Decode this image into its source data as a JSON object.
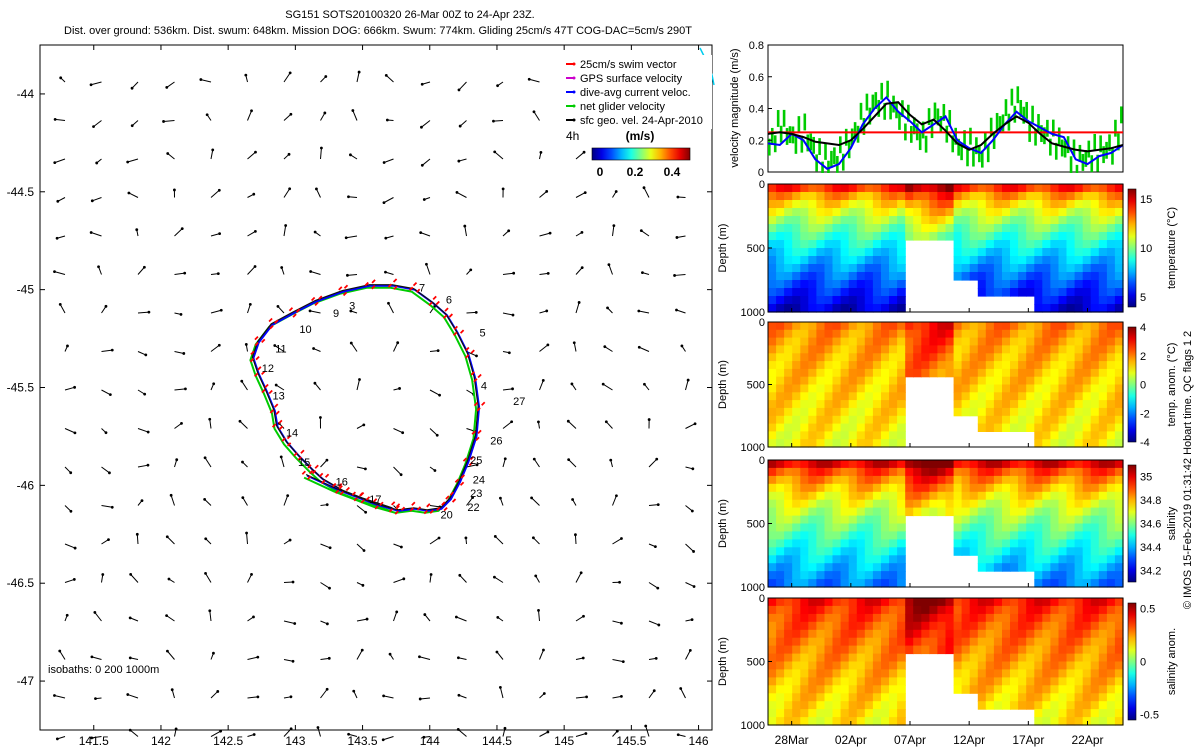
{
  "header": {
    "title": "SG151 SOTS20100320 26-Mar 00Z to 24-Apr 23Z.",
    "subtitle": "Dist. over ground: 536km. Dist. swum: 648km. Mission DOG: 666km. Swum: 774km. Gliding 25cm/s 47T COG-DAC=5cm/s 290T"
  },
  "credit": "© IMOS 15-Feb-2019 01:31:42 Hobart time. QC flags 1  2",
  "colors": {
    "swim": "#ff0000",
    "gps": "#cc00cc",
    "dac": "#0000ff",
    "net": "#00cc00",
    "sfc": "#000000",
    "track_cyan": "#00ccee"
  },
  "chart_data": [
    {
      "id": "map",
      "type": "scatter",
      "title": "",
      "xlabel": "",
      "ylabel": "",
      "xlim": [
        141.1,
        146.1
      ],
      "ylim": [
        -47.25,
        -43.75
      ],
      "x_ticks": [
        141.5,
        142,
        142.5,
        143,
        143.5,
        144,
        144.5,
        145,
        145.5,
        146
      ],
      "x_tick_labels": [
        "141.5",
        "142",
        "142.5",
        "143",
        "143.5",
        "144",
        "144.5",
        "145",
        "145.5",
        "146"
      ],
      "y_ticks": [
        -44,
        -44.5,
        -45,
        -45.5,
        -46,
        -46.5,
        -47
      ],
      "y_tick_labels": [
        "-44",
        "-44.5",
        "-45",
        "-45.5",
        "-46",
        "-46.5",
        "-47"
      ],
      "legend": {
        "items": [
          {
            "label": "25cm/s swim vector",
            "color": "#ff0000"
          },
          {
            "label": "GPS surface velocity",
            "color": "#cc00cc"
          },
          {
            "label": "dive-avg current veloc.",
            "color": "#0000ff"
          },
          {
            "label": "net glider velocity",
            "color": "#00cc00"
          },
          {
            "label": "sfc geo. vel. 24-Apr-2010",
            "color": "#000000"
          }
        ],
        "position": "top-right"
      },
      "colorbar": {
        "label": "(m/s)",
        "time_label": "4h",
        "ticks": [
          "0",
          "0.2",
          "0.4"
        ]
      },
      "isobaths_label": "isobaths: 0  200  1000m",
      "track": {
        "lon": [
          143.72,
          143.5,
          143.35,
          143.2,
          143.12,
          143.02,
          142.93,
          142.86,
          142.84,
          142.78,
          142.72,
          142.68,
          142.72,
          142.82,
          142.98,
          143.15,
          143.35,
          143.55,
          143.72,
          143.88,
          144.02,
          144.12,
          144.2,
          144.28,
          144.33,
          144.36,
          144.34,
          144.28,
          144.22,
          144.15,
          144.08,
          143.98,
          143.88,
          143.76,
          143.6,
          143.45,
          143.3,
          143.08
        ],
        "lat": [
          -46.12,
          -46.07,
          -46.03,
          -45.97,
          -45.92,
          -45.85,
          -45.78,
          -45.7,
          -45.62,
          -45.52,
          -45.43,
          -45.35,
          -45.27,
          -45.18,
          -45.12,
          -45.06,
          -45.01,
          -44.98,
          -44.98,
          -45.0,
          -45.07,
          -45.13,
          -45.22,
          -45.33,
          -45.45,
          -45.6,
          -45.75,
          -45.88,
          -45.98,
          -46.07,
          -46.12,
          -46.13,
          -46.12,
          -46.13,
          -46.1,
          -46.06,
          -46.02,
          -45.95
        ]
      },
      "dive_labels": [
        {
          "n": "3",
          "lon": 143.4,
          "lat": -45.08
        },
        {
          "n": "5",
          "lon": 144.37,
          "lat": -45.22
        },
        {
          "n": "6",
          "lon": 144.12,
          "lat": -45.05
        },
        {
          "n": "7",
          "lon": 143.92,
          "lat": -44.99
        },
        {
          "n": "9",
          "lon": 143.28,
          "lat": -45.12
        },
        {
          "n": "10",
          "lon": 143.03,
          "lat": -45.2
        },
        {
          "n": "11",
          "lon": 142.85,
          "lat": -45.3
        },
        {
          "n": "12",
          "lon": 142.75,
          "lat": -45.4
        },
        {
          "n": "13",
          "lon": 142.83,
          "lat": -45.54
        },
        {
          "n": "14",
          "lon": 142.93,
          "lat": -45.73
        },
        {
          "n": "15",
          "lon": 143.02,
          "lat": -45.88
        },
        {
          "n": "16",
          "lon": 143.3,
          "lat": -45.98
        },
        {
          "n": "17",
          "lon": 143.55,
          "lat": -46.07
        },
        {
          "n": "20",
          "lon": 144.08,
          "lat": -46.15
        },
        {
          "n": "22",
          "lon": 144.28,
          "lat": -46.11
        },
        {
          "n": "23",
          "lon": 144.3,
          "lat": -46.04
        },
        {
          "n": "24",
          "lon": 144.32,
          "lat": -45.97
        },
        {
          "n": "25",
          "lon": 144.3,
          "lat": -45.87
        },
        {
          "n": "26",
          "lon": 144.45,
          "lat": -45.77
        },
        {
          "n": "27",
          "lon": 144.62,
          "lat": -45.57
        },
        {
          "n": "4",
          "lon": 144.38,
          "lat": -45.49
        }
      ]
    },
    {
      "id": "velocity",
      "type": "line",
      "title": "",
      "xlabel": "",
      "ylabel": "velocity magnitude (m/s)",
      "xlim": [
        0,
        30
      ],
      "ylim": [
        0,
        0.8
      ],
      "y_ticks": [
        0,
        0.2,
        0.4,
        0.6,
        0.8
      ],
      "y_tick_labels": [
        "0",
        "0.2",
        "0.4",
        "0.6",
        "0.8"
      ],
      "reference_value": 0.25,
      "series": [
        {
          "name": "dive-avg current veloc.",
          "color": "#0000ff",
          "x": [
            0,
            1,
            2,
            3,
            4,
            5,
            6,
            7,
            8,
            9,
            10,
            11,
            12,
            13,
            14,
            15,
            16,
            17,
            18,
            19,
            20,
            21,
            22,
            23,
            24,
            25,
            26,
            27,
            28,
            29,
            30
          ],
          "values": [
            0.18,
            0.17,
            0.24,
            0.2,
            0.08,
            0.02,
            0.05,
            0.15,
            0.3,
            0.4,
            0.47,
            0.38,
            0.32,
            0.25,
            0.3,
            0.35,
            0.2,
            0.15,
            0.12,
            0.2,
            0.3,
            0.38,
            0.32,
            0.28,
            0.24,
            0.22,
            0.08,
            0.05,
            0.1,
            0.12,
            0.17
          ]
        },
        {
          "name": "sfc geo. vel.",
          "color": "#000000",
          "x": [
            0,
            1,
            2,
            3,
            4,
            5,
            6,
            7,
            8,
            9,
            10,
            11,
            12,
            13,
            14,
            15,
            16,
            17,
            18,
            19,
            20,
            21,
            22,
            23,
            24,
            25,
            26,
            27,
            28,
            29,
            30
          ],
          "values": [
            0.24,
            0.25,
            0.24,
            0.22,
            0.19,
            0.18,
            0.17,
            0.2,
            0.27,
            0.35,
            0.43,
            0.44,
            0.36,
            0.3,
            0.33,
            0.26,
            0.18,
            0.14,
            0.17,
            0.24,
            0.3,
            0.35,
            0.31,
            0.24,
            0.18,
            0.16,
            0.14,
            0.13,
            0.14,
            0.15,
            0.17
          ]
        },
        {
          "name": "net glider velocity",
          "color": "#00cc00",
          "x": [
            0,
            1,
            2,
            3,
            4,
            5,
            6,
            7,
            8,
            9,
            10,
            11,
            12,
            13,
            14,
            15,
            16,
            17,
            18,
            19,
            20,
            21,
            22,
            23,
            24,
            25,
            26,
            27,
            28,
            29,
            30
          ],
          "values": [
            0.15,
            0.3,
            0.2,
            0.25,
            0.1,
            0.05,
            0.1,
            0.2,
            0.35,
            0.43,
            0.45,
            0.35,
            0.28,
            0.2,
            0.35,
            0.3,
            0.15,
            0.15,
            0.1,
            0.25,
            0.35,
            0.44,
            0.3,
            0.25,
            0.2,
            0.15,
            0.05,
            0.1,
            0.12,
            0.15,
            0.35
          ]
        }
      ]
    },
    {
      "id": "temperature",
      "type": "heatmap",
      "ylabel": "Depth (m)",
      "ylim": [
        1000,
        0
      ],
      "y_ticks": [
        0,
        500,
        1000
      ],
      "y_tick_labels": [
        "0",
        "500",
        "1000"
      ],
      "colorbar_label": "temperature (°C)",
      "colorbar_ticks": [
        "15",
        "10",
        "5"
      ],
      "colorbar_tick_values": [
        15,
        10,
        5
      ],
      "clim": [
        4,
        16
      ],
      "surface_value": 14,
      "bottom_value": 5
    },
    {
      "id": "temp_anom",
      "type": "heatmap",
      "ylabel": "Depth (m)",
      "ylim": [
        1000,
        0
      ],
      "y_ticks": [
        0,
        500,
        1000
      ],
      "y_tick_labels": [
        "0",
        "500",
        "1000"
      ],
      "colorbar_label": "temp. anom. (°C)",
      "colorbar_ticks": [
        "4",
        "2",
        "0",
        "-2",
        "-4"
      ],
      "colorbar_tick_values": [
        4,
        2,
        0,
        -2,
        -4
      ],
      "clim": [
        -4,
        4
      ],
      "surface_value": 2,
      "bottom_value": 1
    },
    {
      "id": "salinity",
      "type": "heatmap",
      "ylabel": "Depth (m)",
      "ylim": [
        1000,
        0
      ],
      "y_ticks": [
        0,
        500,
        1000
      ],
      "y_tick_labels": [
        "0",
        "500",
        "1000"
      ],
      "colorbar_label": "salinity",
      "colorbar_ticks": [
        "35",
        "34.8",
        "34.6",
        "34.4",
        "34.2"
      ],
      "colorbar_tick_values": [
        35,
        34.8,
        34.6,
        34.4,
        34.2
      ],
      "clim": [
        34.1,
        35.1
      ],
      "surface_value": 35,
      "bottom_value": 34.35
    },
    {
      "id": "sal_anom",
      "type": "heatmap",
      "ylabel": "Depth (m)",
      "ylim": [
        1000,
        0
      ],
      "y_ticks": [
        0,
        500,
        1000
      ],
      "y_tick_labels": [
        "0",
        "500",
        "1000"
      ],
      "colorbar_label": "salinity anom.",
      "colorbar_ticks": [
        "0.5",
        "0",
        "-0.5"
      ],
      "colorbar_tick_values": [
        0.5,
        0,
        -0.5
      ],
      "clim": [
        -0.55,
        0.55
      ],
      "surface_value": 0.4,
      "bottom_value": 0.15
    }
  ],
  "time_axis": {
    "tick_labels": [
      "28Mar",
      "02Apr",
      "07Apr",
      "12Apr",
      "17Apr",
      "22Apr"
    ],
    "tick_days": [
      2,
      7,
      12,
      17,
      22,
      27
    ],
    "range_days": [
      0,
      30
    ]
  }
}
